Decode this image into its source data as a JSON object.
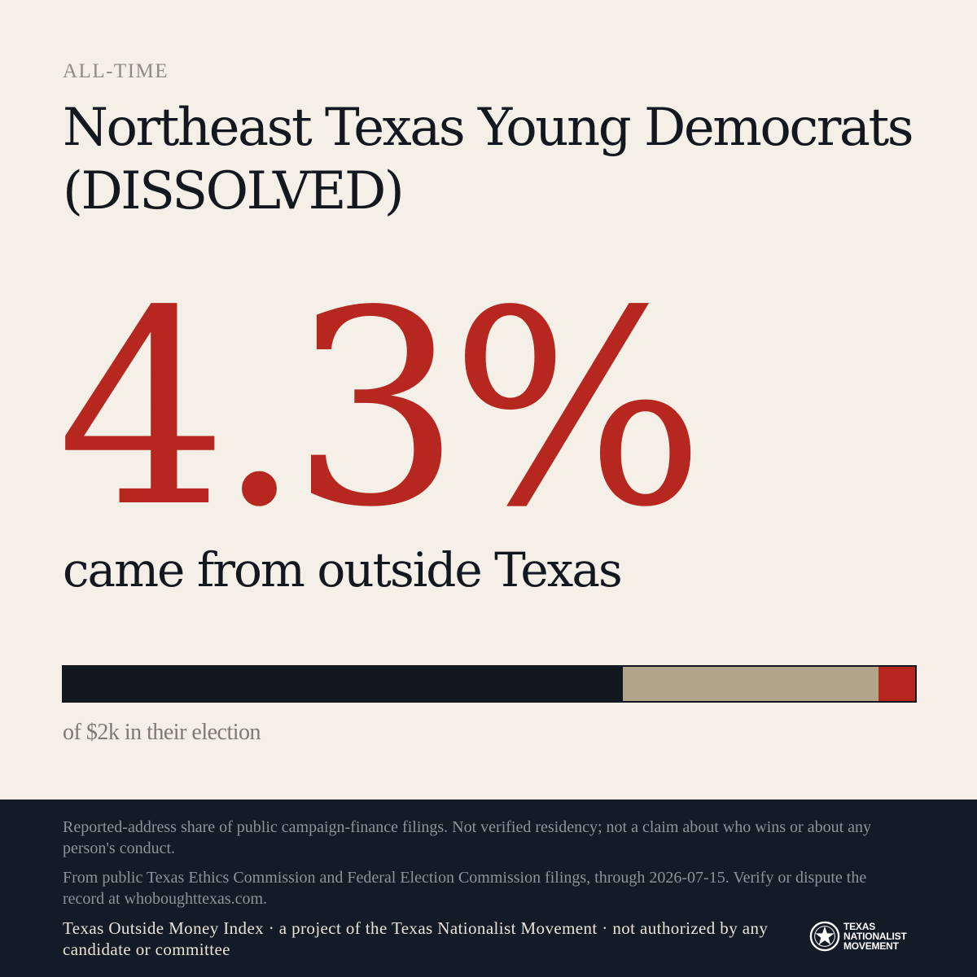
{
  "header": {
    "eyebrow": "ALL-TIME",
    "title": "Northeast Texas Young Democrats (DISSOLVED)"
  },
  "stat": {
    "value": "4.3%",
    "caption": "came from outside Texas"
  },
  "bar": {
    "segments": [
      {
        "name": "in-texas",
        "fraction": 0.657,
        "color": "#131820"
      },
      {
        "name": "unknown",
        "fraction": 0.3,
        "color": "#b0a48a"
      },
      {
        "name": "outside-texas",
        "fraction": 0.043,
        "color": "#b5271f"
      }
    ],
    "caption": "of $2k in their election"
  },
  "footer": {
    "note1": "Reported-address share of public campaign-finance filings. Not verified residency; not a claim about who wins or about any person's conduct.",
    "note2": "From public Texas Ethics Commission and Federal Election Commission filings, through 2026-07-15. Verify or dispute the record at whoboughttexas.com.",
    "credit": "Texas Outside Money Index · a project of the Texas Nationalist Movement · not authorized by any candidate or committee",
    "logo": {
      "line1": "TEXAS",
      "line2": "NATIONALIST",
      "line3": "MOVEMENT",
      "icon": "star-seal-icon"
    }
  }
}
